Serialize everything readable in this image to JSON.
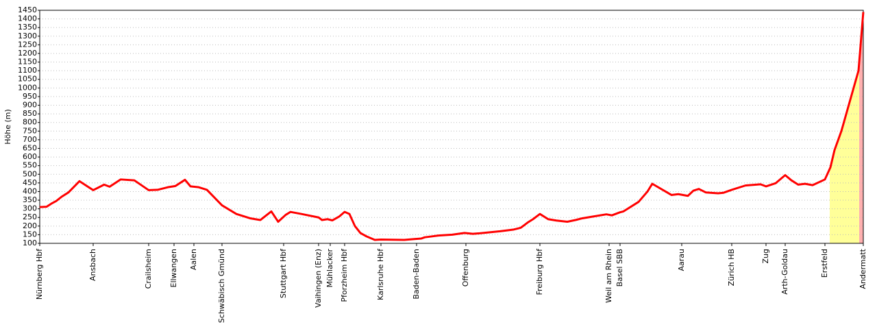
{
  "chart_data": {
    "type": "line",
    "ylabel": "Höhe (m)",
    "x": [
      0,
      5,
      8.5,
      12,
      16,
      21,
      29,
      39,
      47,
      51,
      59,
      69,
      79.5,
      86,
      93.5,
      99,
      106,
      110,
      116,
      122,
      133,
      143.5,
      153.5,
      161,
      165,
      169,
      174,
      179.5,
      183,
      191,
      203.5,
      206,
      210,
      213.5,
      218.5,
      222.5,
      226,
      230,
      234,
      238.5,
      244.5,
      249,
      266,
      273.5,
      278.5,
      281,
      286,
      291,
      301,
      310,
      316,
      321,
      326,
      336,
      346,
      351,
      356,
      360,
      365,
      371,
      377,
      385,
      391,
      396,
      403.5,
      413.5,
      417.5,
      423.5,
      426,
      437,
      443.5,
      447,
      461,
      466,
      473,
      477,
      481,
      486,
      495,
      499,
      505,
      515,
      526,
      530,
      537,
      544,
      548.5,
      553.5,
      558.5,
      564,
      573,
      577,
      580,
      585,
      597.5,
      601
    ],
    "series": [
      {
        "color": "#ff0000",
        "values": [
          310,
          312,
          330,
          345,
          370,
          395,
          460,
          408,
          440,
          428,
          470,
          465,
          408,
          410,
          425,
          432,
          468,
          430,
          425,
          410,
          320,
          270,
          245,
          235,
          260,
          285,
          225,
          265,
          282,
          270,
          250,
          235,
          240,
          233,
          255,
          282,
          270,
          200,
          160,
          140,
          120,
          122,
          120,
          125,
          128,
          135,
          140,
          145,
          150,
          160,
          155,
          158,
          162,
          170,
          180,
          190,
          220,
          240,
          270,
          240,
          232,
          225,
          235,
          245,
          255,
          268,
          262,
          280,
          285,
          340,
          400,
          445,
          380,
          385,
          375,
          405,
          415,
          395,
          390,
          393,
          410,
          435,
          442,
          430,
          448,
          495,
          465,
          440,
          445,
          437,
          470,
          540,
          640,
          750,
          1100,
          1440
        ]
      }
    ],
    "stations": {
      "x": [
        0,
        39,
        79.5,
        98,
        112.5,
        133,
        178,
        203.5,
        212,
        222.5,
        249,
        275,
        311,
        365,
        415.5,
        423.5,
        468.5,
        505,
        530,
        544,
        573,
        601
      ],
      "names": [
        "Nürnberg Hbf",
        "Ansbach",
        "Crailsheim",
        "Ellwangen",
        "Aalen",
        "Schwäbisch Gmünd",
        "Stuttgart Hbf",
        "Vaihingen (Enz)",
        "Mühlacker",
        "Pforzheim Hbf",
        "Karlsruhe Hbf",
        "Baden-Baden",
        "Offenburg",
        "Freiburg Hbf",
        "Weil am Rhein",
        "Basel SBB",
        "Aarau",
        "Zürich HB",
        "Zug",
        "Arth-Goldau",
        "Erstfeld",
        "Andermatt"
      ]
    },
    "highlights": [
      {
        "x": [
          576.5,
          598
        ],
        "color": "#ffff99"
      },
      {
        "x": [
          598,
          601
        ],
        "color": "#ffb0b0"
      }
    ],
    "xlim": [
      0,
      601
    ],
    "ylim": [
      100,
      1450
    ],
    "yticks": [
      100,
      150,
      200,
      250,
      300,
      350,
      400,
      450,
      500,
      550,
      600,
      650,
      700,
      750,
      800,
      850,
      900,
      950,
      1000,
      1050,
      1100,
      1150,
      1200,
      1250,
      1300,
      1350,
      1400,
      1450
    ],
    "grid": true
  }
}
